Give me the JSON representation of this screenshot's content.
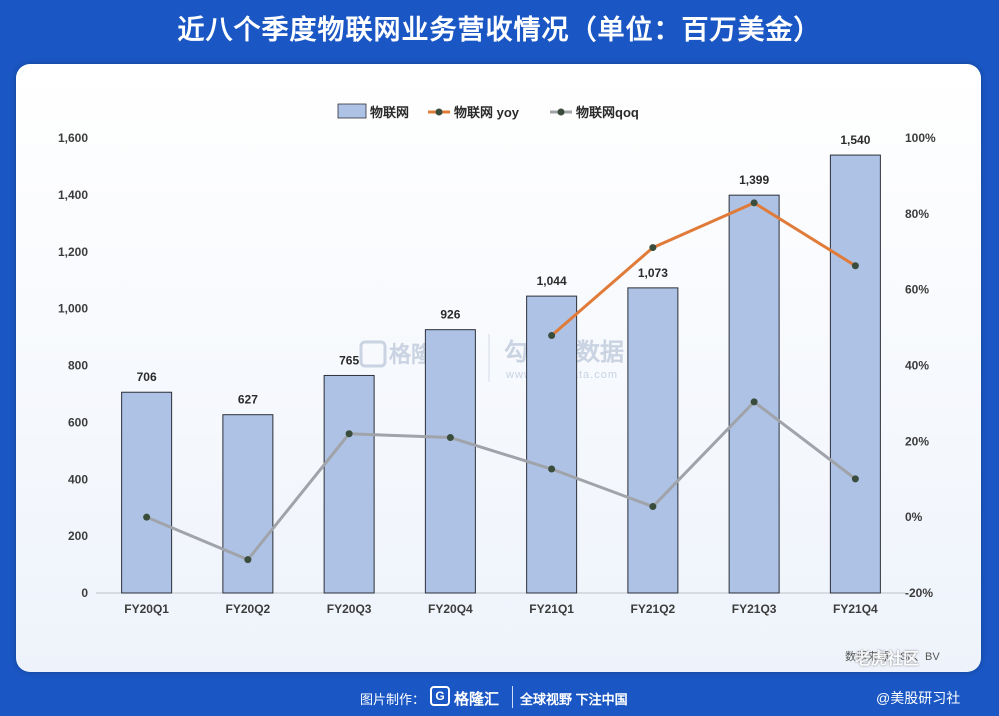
{
  "title": "近八个季度物联网业务营收情况（单位：百万美金）",
  "watermark": {
    "left": "格隆汇",
    "right": "勾股大数据",
    "right_url": "www.gogudata.com"
  },
  "source_note": "数据来源：SF、BV",
  "corner_watermark": "老虎社区",
  "footer": {
    "made_by": "图片制作：",
    "brand": "格隆汇",
    "slogan": "全球视野 下注中国",
    "handle": "@美股研习社"
  },
  "colors": {
    "bar_fill": "#adc2e5",
    "bar_stroke": "#2b2f38",
    "yoy": "#e07b39",
    "qoq": "#a0a4aa",
    "marker": "#3a4d3c"
  },
  "chart_data": {
    "type": "bar",
    "categories": [
      "FY20Q1",
      "FY20Q2",
      "FY20Q3",
      "FY20Q4",
      "FY21Q1",
      "FY21Q2",
      "FY21Q3",
      "FY21Q4"
    ],
    "series": [
      {
        "name": "物联网",
        "type": "bar",
        "axis": "left",
        "values": [
          706,
          627,
          765,
          926,
          1044,
          1073,
          1399,
          1540
        ],
        "labels": [
          "706",
          "627",
          "765",
          "926",
          "1,044",
          "1,073",
          "1,399",
          "1,540"
        ]
      },
      {
        "name": "物联网 yoy",
        "type": "line",
        "axis": "right",
        "values": [
          null,
          null,
          null,
          null,
          47.9,
          71.1,
          82.9,
          66.3
        ]
      },
      {
        "name": "物联网qoq",
        "type": "line",
        "axis": "right",
        "values": [
          0,
          -11.2,
          22.0,
          21.0,
          12.7,
          2.8,
          30.4,
          10.1
        ]
      }
    ],
    "yleft": {
      "min": 0,
      "max": 1600,
      "ticks": [
        "0",
        "200",
        "400",
        "600",
        "800",
        "1,000",
        "1,200",
        "1,400",
        "1,600"
      ]
    },
    "yright": {
      "min": -20,
      "max": 100,
      "ticks": [
        "-20%",
        "0%",
        "20%",
        "40%",
        "60%",
        "80%",
        "100%"
      ]
    },
    "legend_position": "top-center",
    "grid": false
  }
}
